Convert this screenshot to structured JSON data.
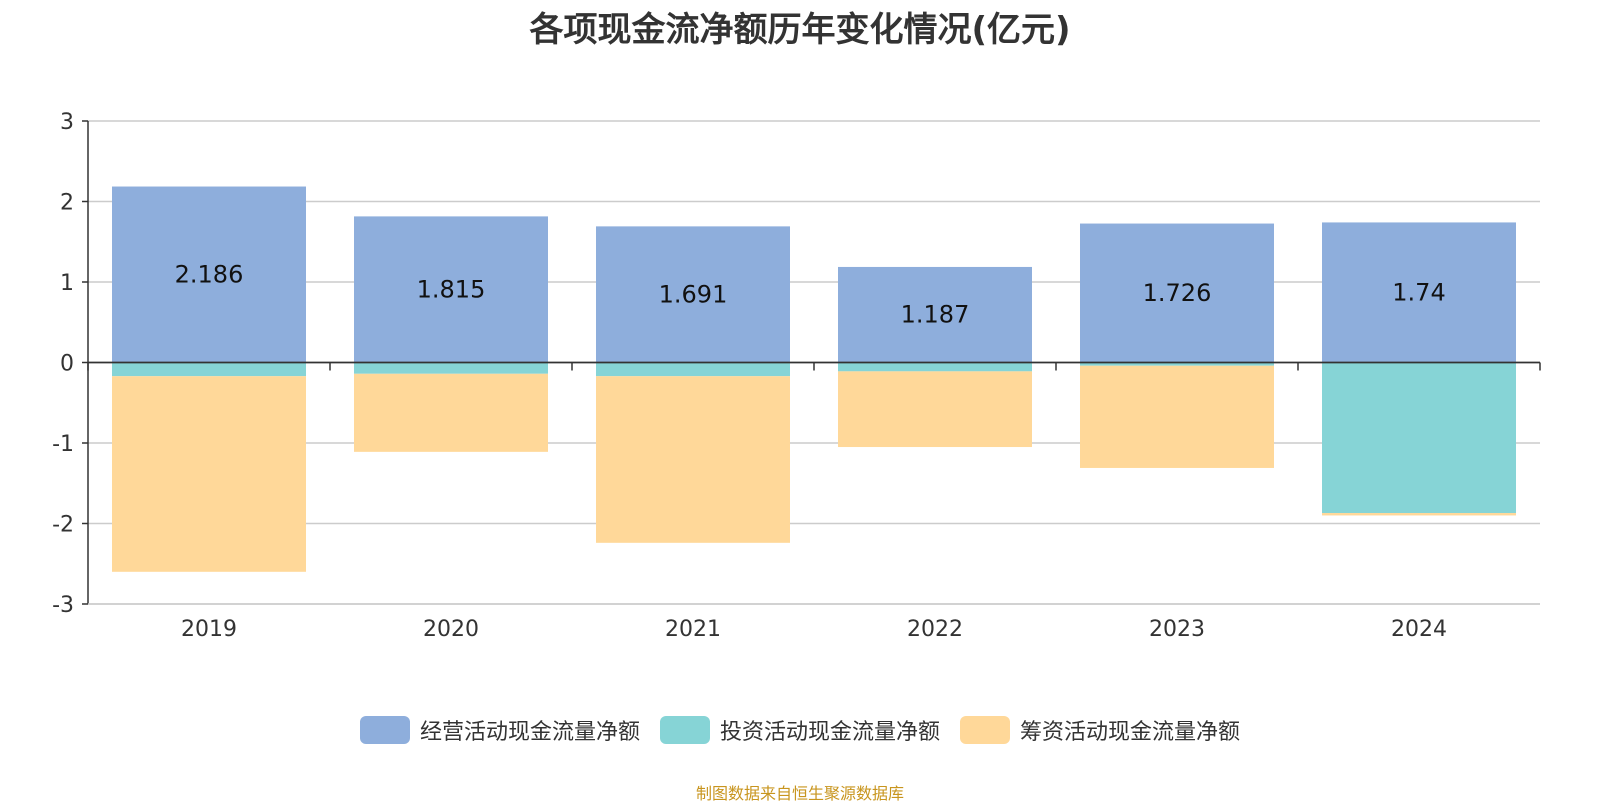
{
  "chart_data": {
    "type": "bar",
    "stacked": true,
    "title": "各项现金流净额历年变化情况(亿元)",
    "xlabel": "",
    "ylabel": "",
    "categories": [
      "2019",
      "2020",
      "2021",
      "2022",
      "2023",
      "2024"
    ],
    "ylim": [
      -3,
      3
    ],
    "yticks": [
      3,
      2,
      1,
      0,
      -1,
      -2,
      -3
    ],
    "grid": true,
    "legend_position": "bottom",
    "series": [
      {
        "name": "经营活动现金流量净额",
        "color": "#8eaedc",
        "values": [
          2.186,
          1.815,
          1.691,
          1.187,
          1.726,
          1.74
        ],
        "labels": [
          "2.186",
          "1.815",
          "1.691",
          "1.187",
          "1.726",
          "1.74"
        ]
      },
      {
        "name": "投资活动现金流量净额",
        "color": "#86d4d6",
        "values": [
          -0.17,
          -0.14,
          -0.17,
          -0.11,
          -0.04,
          -1.87
        ]
      },
      {
        "name": "筹资活动现金流量净额",
        "color": "#ffd899",
        "values": [
          -2.43,
          -0.97,
          -2.07,
          -0.94,
          -1.27,
          -0.03
        ]
      }
    ]
  },
  "source_text": "制图数据来自恒生聚源数据库",
  "source_color": "#c8951e"
}
